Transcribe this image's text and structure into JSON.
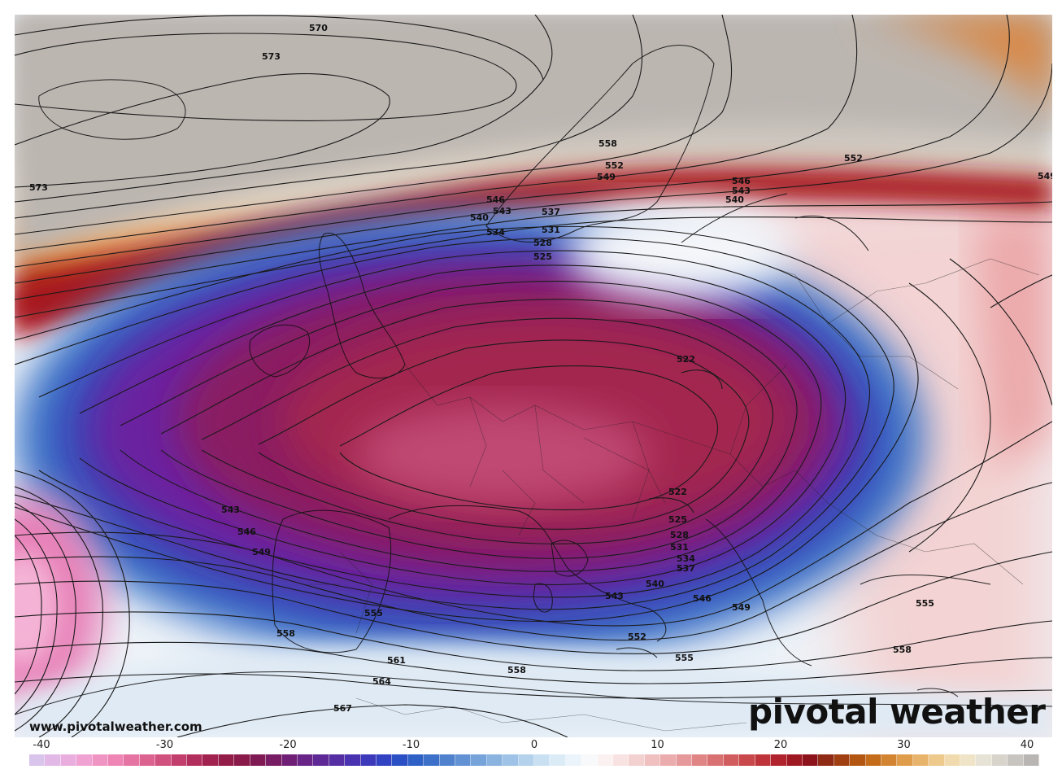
{
  "watermark": {
    "url": "www.pivotalweather.com",
    "brand": "pivotal weather"
  },
  "colorbar": {
    "ticks": [
      "-40",
      "-30",
      "-20",
      "-10",
      "0",
      "10",
      "20",
      "30",
      "40"
    ],
    "tick_values": [
      -40,
      -30,
      -20,
      -10,
      0,
      10,
      20,
      30,
      40
    ],
    "colors": [
      "#d9c4ec",
      "#e2b9e6",
      "#eaaede",
      "#f0a2d2",
      "#f094c4",
      "#ee85b5",
      "#e674a2",
      "#dc6290",
      "#d0507e",
      "#c23e6c",
      "#b22e5c",
      "#a2224f",
      "#941c48",
      "#8a1a4a",
      "#7f1a55",
      "#781c64",
      "#6f1f75",
      "#682486",
      "#5f2995",
      "#552ea4",
      "#4a33b0",
      "#3d39bb",
      "#3142c2",
      "#2b4fc4",
      "#2f60c6",
      "#3d70c8",
      "#4f81cd",
      "#6292d3",
      "#76a3d9",
      "#8ab3df",
      "#9fc3e6",
      "#b4d2ec",
      "#c8e0f2",
      "#dbecf7",
      "#ebf4fa",
      "#f7f9fb",
      "#fbf1f1",
      "#f8e2e2",
      "#f4d1d1",
      "#f0bfbf",
      "#ebacad",
      "#e6999a",
      "#e08586",
      "#d97172",
      "#d25d5e",
      "#c9484b",
      "#be343a",
      "#b0232c",
      "#9e1822",
      "#8c121c",
      "#8f2a14",
      "#a03f12",
      "#b25612",
      "#c46c1a",
      "#d38430",
      "#df9c4a",
      "#e8b36a",
      "#eec98c",
      "#f1dbae",
      "#efe4c8",
      "#e6e2d6",
      "#d8d4cc",
      "#c8c4bf",
      "#b9b5b2"
    ]
  },
  "contour_labels": [
    "570",
    "573",
    "573",
    "558",
    "552",
    "549",
    "546",
    "543",
    "540",
    "552",
    "549",
    "546",
    "543",
    "540",
    "537",
    "534",
    "531",
    "528",
    "525",
    "522",
    "522",
    "525",
    "528",
    "531",
    "534",
    "537",
    "540",
    "543",
    "546",
    "549",
    "543",
    "546",
    "549",
    "552",
    "555",
    "555",
    "555",
    "558",
    "558",
    "561",
    "564",
    "567",
    "558"
  ]
}
